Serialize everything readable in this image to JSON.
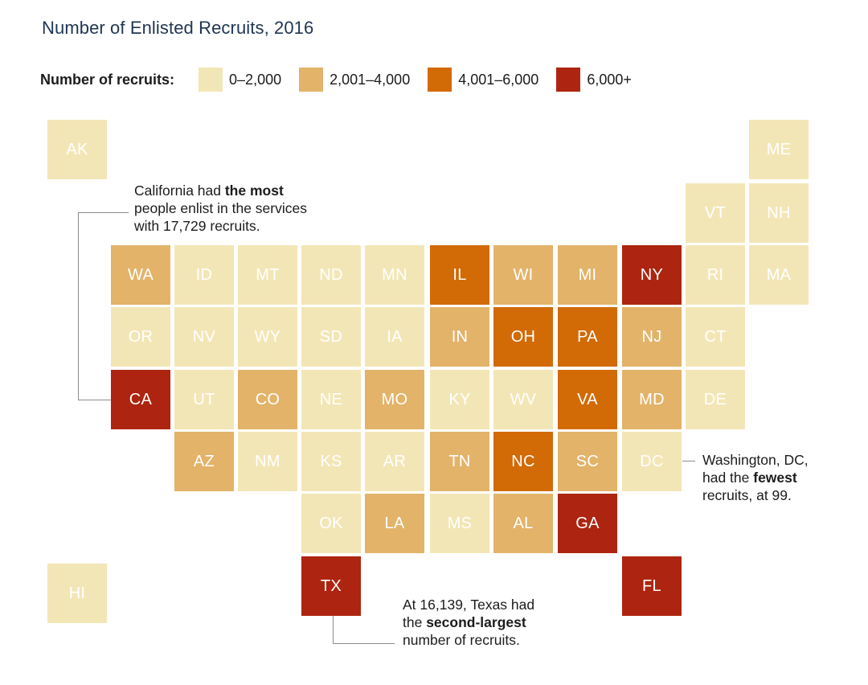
{
  "title": "Number of Enlisted Recruits, 2016",
  "legend": {
    "label": "Number of recruits:",
    "bins": [
      {
        "id": "b1",
        "label": "0–2,000",
        "color": "#f3e6b6"
      },
      {
        "id": "b2",
        "label": "2,001–4,000",
        "color": "#e2b369"
      },
      {
        "id": "b3",
        "label": "4,001–6,000",
        "color": "#d26a06"
      },
      {
        "id": "b4",
        "label": "6,000+",
        "color": "#ad2510"
      }
    ]
  },
  "states": {
    "AK": {
      "abbr": "AK",
      "bin": "0–2,000"
    },
    "ME": {
      "abbr": "ME",
      "bin": "0–2,000"
    },
    "VT": {
      "abbr": "VT",
      "bin": "0–2,000"
    },
    "NH": {
      "abbr": "NH",
      "bin": "0–2,000"
    },
    "WA": {
      "abbr": "WA",
      "bin": "2,001–4,000"
    },
    "ID": {
      "abbr": "ID",
      "bin": "0–2,000"
    },
    "MT": {
      "abbr": "MT",
      "bin": "0–2,000"
    },
    "ND": {
      "abbr": "ND",
      "bin": "0–2,000"
    },
    "MN": {
      "abbr": "MN",
      "bin": "0–2,000"
    },
    "IL": {
      "abbr": "IL",
      "bin": "4,001–6,000"
    },
    "WI": {
      "abbr": "WI",
      "bin": "2,001–4,000"
    },
    "MI": {
      "abbr": "MI",
      "bin": "2,001–4,000"
    },
    "NY": {
      "abbr": "NY",
      "bin": "6,000+"
    },
    "RI": {
      "abbr": "RI",
      "bin": "0–2,000"
    },
    "MA": {
      "abbr": "MA",
      "bin": "0–2,000"
    },
    "OR": {
      "abbr": "OR",
      "bin": "0–2,000"
    },
    "NV": {
      "abbr": "NV",
      "bin": "0–2,000"
    },
    "WY": {
      "abbr": "WY",
      "bin": "0–2,000"
    },
    "SD": {
      "abbr": "SD",
      "bin": "0–2,000"
    },
    "IA": {
      "abbr": "IA",
      "bin": "0–2,000"
    },
    "IN": {
      "abbr": "IN",
      "bin": "2,001–4,000"
    },
    "OH": {
      "abbr": "OH",
      "bin": "4,001–6,000"
    },
    "PA": {
      "abbr": "PA",
      "bin": "4,001–6,000"
    },
    "NJ": {
      "abbr": "NJ",
      "bin": "2,001–4,000"
    },
    "CT": {
      "abbr": "CT",
      "bin": "0–2,000"
    },
    "CA": {
      "abbr": "CA",
      "bin": "6,000+"
    },
    "UT": {
      "abbr": "UT",
      "bin": "0–2,000"
    },
    "CO": {
      "abbr": "CO",
      "bin": "2,001–4,000"
    },
    "NE": {
      "abbr": "NE",
      "bin": "0–2,000"
    },
    "MO": {
      "abbr": "MO",
      "bin": "2,001–4,000"
    },
    "KY": {
      "abbr": "KY",
      "bin": "0–2,000"
    },
    "WV": {
      "abbr": "WV",
      "bin": "0–2,000"
    },
    "VA": {
      "abbr": "VA",
      "bin": "4,001–6,000"
    },
    "MD": {
      "abbr": "MD",
      "bin": "2,001–4,000"
    },
    "DE": {
      "abbr": "DE",
      "bin": "0–2,000"
    },
    "AZ": {
      "abbr": "AZ",
      "bin": "2,001–4,000"
    },
    "NM": {
      "abbr": "NM",
      "bin": "0–2,000"
    },
    "KS": {
      "abbr": "KS",
      "bin": "0–2,000"
    },
    "AR": {
      "abbr": "AR",
      "bin": "0–2,000"
    },
    "TN": {
      "abbr": "TN",
      "bin": "2,001–4,000"
    },
    "NC": {
      "abbr": "NC",
      "bin": "4,001–6,000"
    },
    "SC": {
      "abbr": "SC",
      "bin": "2,001–4,000"
    },
    "DC": {
      "abbr": "DC",
      "bin": "0–2,000"
    },
    "OK": {
      "abbr": "OK",
      "bin": "0–2,000"
    },
    "LA": {
      "abbr": "LA",
      "bin": "2,001–4,000"
    },
    "MS": {
      "abbr": "MS",
      "bin": "0–2,000"
    },
    "AL": {
      "abbr": "AL",
      "bin": "2,001–4,000"
    },
    "GA": {
      "abbr": "GA",
      "bin": "6,000+"
    },
    "HI": {
      "abbr": "HI",
      "bin": "0–2,000"
    },
    "TX": {
      "abbr": "TX",
      "bin": "6,000+"
    },
    "FL": {
      "abbr": "FL",
      "bin": "6,000+"
    }
  },
  "annotations": {
    "ca": {
      "line1_pre": "California had ",
      "line1_bold": "the most",
      "line2": "people enlist in the services",
      "line3": "with 17,729 recruits."
    },
    "dc": {
      "line1": "Washington, DC,",
      "line2_pre": "had the ",
      "line2_bold": "fewest",
      "line3": "recruits, at 99."
    },
    "tx": {
      "line1": "At 16,139, Texas had",
      "line2_pre": "the ",
      "line2_bold": "second-largest",
      "line3": "number of recruits."
    }
  }
}
